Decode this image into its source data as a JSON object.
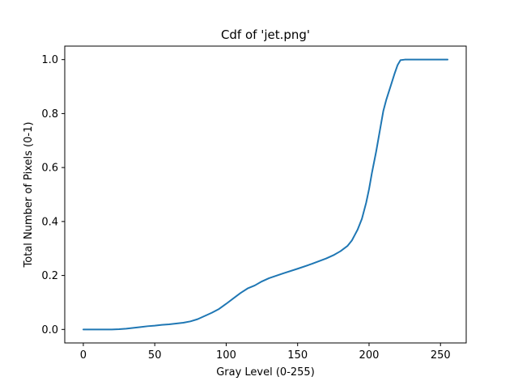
{
  "chart_data": {
    "type": "line",
    "title": "Cdf of 'jet.png'",
    "xlabel": "Gray Level (0-255)",
    "ylabel": "Total Number of Pixels (0-1)",
    "xlim": [
      -13,
      268
    ],
    "ylim": [
      -0.05,
      1.05
    ],
    "xticks": [
      0,
      50,
      100,
      150,
      200,
      250
    ],
    "yticks": [
      0.0,
      0.2,
      0.4,
      0.6,
      0.8,
      1.0
    ],
    "xtick_labels": [
      "0",
      "50",
      "100",
      "150",
      "200",
      "250"
    ],
    "ytick_labels": [
      "0.0",
      "0.2",
      "0.4",
      "0.6",
      "0.8",
      "1.0"
    ],
    "grid": false,
    "series": [
      {
        "color": "#1f77b4",
        "x": [
          0,
          10,
          20,
          25,
          30,
          35,
          40,
          45,
          50,
          55,
          60,
          65,
          70,
          75,
          80,
          85,
          90,
          95,
          100,
          105,
          110,
          115,
          120,
          125,
          130,
          140,
          150,
          160,
          170,
          175,
          180,
          185,
          188,
          190,
          192,
          195,
          198,
          200,
          202,
          205,
          208,
          210,
          212,
          215,
          218,
          220,
          222,
          225,
          230,
          240,
          250,
          255
        ],
        "y": [
          0.0,
          0.0,
          0.0,
          0.001,
          0.003,
          0.006,
          0.009,
          0.012,
          0.014,
          0.017,
          0.019,
          0.022,
          0.025,
          0.03,
          0.038,
          0.05,
          0.062,
          0.076,
          0.095,
          0.115,
          0.135,
          0.152,
          0.163,
          0.178,
          0.19,
          0.208,
          0.225,
          0.243,
          0.263,
          0.275,
          0.29,
          0.31,
          0.33,
          0.35,
          0.37,
          0.41,
          0.47,
          0.52,
          0.58,
          0.66,
          0.75,
          0.81,
          0.85,
          0.9,
          0.95,
          0.98,
          0.998,
          1.0,
          1.0,
          1.0,
          1.0,
          1.0
        ]
      }
    ]
  }
}
